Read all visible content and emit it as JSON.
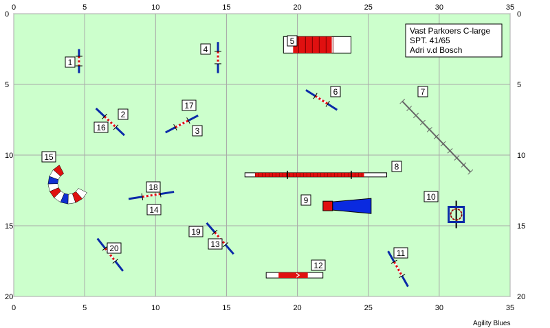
{
  "axes": {
    "x_ticks": [
      "0",
      "5",
      "10",
      "15",
      "20",
      "25",
      "30",
      "35"
    ],
    "y_ticks": [
      "0",
      "5",
      "10",
      "15",
      "20"
    ],
    "x_range": [
      0,
      35
    ],
    "y_range": [
      0,
      20
    ],
    "grid": true
  },
  "colors": {
    "field": "#ccffcc",
    "grid": "#a8a8a8",
    "pole_blue": "#0a2aa8",
    "bar_red": "#e01010",
    "white": "#ffffff"
  },
  "info_box": {
    "line1": "Vast Parkoers C-large",
    "line2": "SPT. 41/65",
    "line3": "Adri v.d Bosch"
  },
  "obstacles": [
    {
      "num": "1",
      "type": "hurdle",
      "x1": 4.6,
      "y1": 2.5,
      "x2": 4.6,
      "y2": 4.2
    },
    {
      "num": "2",
      "type": "hurdle",
      "x1": 5.8,
      "y1": 6.7,
      "x2": 7.8,
      "y2": 8.6
    },
    {
      "num": "3",
      "type": "hurdle",
      "x1": 10.7,
      "y1": 8.4,
      "x2": 13.0,
      "y2": 7.2
    },
    {
      "num": "4",
      "type": "hurdle",
      "x1": 14.4,
      "y1": 2.0,
      "x2": 14.4,
      "y2": 4.2
    },
    {
      "num": "5",
      "type": "tunnel_bar",
      "x1": 19.6,
      "y1": 2.2,
      "x2": 23.2,
      "y2": 2.2
    },
    {
      "num": "6",
      "type": "hurdle",
      "x1": 20.6,
      "y1": 5.4,
      "x2": 22.8,
      "y2": 6.8
    },
    {
      "num": "7",
      "type": "dogwalk",
      "x1": 27.4,
      "y1": 6.2,
      "x2": 32.2,
      "y2": 11.2
    },
    {
      "num": "8",
      "type": "long_bar",
      "x1": 16.3,
      "y1": 11.4,
      "x2": 26.3,
      "y2": 11.4
    },
    {
      "num": "9",
      "type": "chute",
      "x1": 22.0,
      "y1": 13.6,
      "x2": 25.2,
      "y2": 13.6
    },
    {
      "num": "10",
      "type": "tire",
      "x1": 31.2,
      "y1": 14.2,
      "x2": 31.2,
      "y2": 14.2
    },
    {
      "num": "11",
      "type": "hurdle",
      "x1": 26.4,
      "y1": 16.8,
      "x2": 27.8,
      "y2": 19.3
    },
    {
      "num": "12",
      "type": "table",
      "x1": 17.8,
      "y1": 18.5,
      "x2": 21.8,
      "y2": 18.5
    },
    {
      "num": "13",
      "type": "hurdle",
      "x1": 13.6,
      "y1": 14.8,
      "x2": 15.5,
      "y2": 17.0
    },
    {
      "num": "14",
      "type": "hurdle",
      "x1": 8.1,
      "y1": 13.1,
      "x2": 11.3,
      "y2": 12.6
    },
    {
      "num": "15",
      "type": "curved_tunnel",
      "x1": 3.0,
      "y1": 12.0,
      "x2": 3.0,
      "y2": 12.0
    },
    {
      "num": "16",
      "type": "hurdle",
      "x1": 5.8,
      "y1": 6.7,
      "x2": 7.8,
      "y2": 8.6
    },
    {
      "num": "17",
      "type": "hurdle",
      "x1": 10.7,
      "y1": 8.4,
      "x2": 13.0,
      "y2": 7.2
    },
    {
      "num": "18",
      "type": "hurdle",
      "x1": 8.1,
      "y1": 13.1,
      "x2": 11.3,
      "y2": 12.6
    },
    {
      "num": "19",
      "type": "hurdle",
      "x1": 13.6,
      "y1": 14.8,
      "x2": 15.5,
      "y2": 17.0
    },
    {
      "num": "20",
      "type": "hurdle",
      "x1": 5.9,
      "y1": 15.9,
      "x2": 7.7,
      "y2": 18.2
    }
  ],
  "footer": {
    "credit": "Agility Blues"
  }
}
